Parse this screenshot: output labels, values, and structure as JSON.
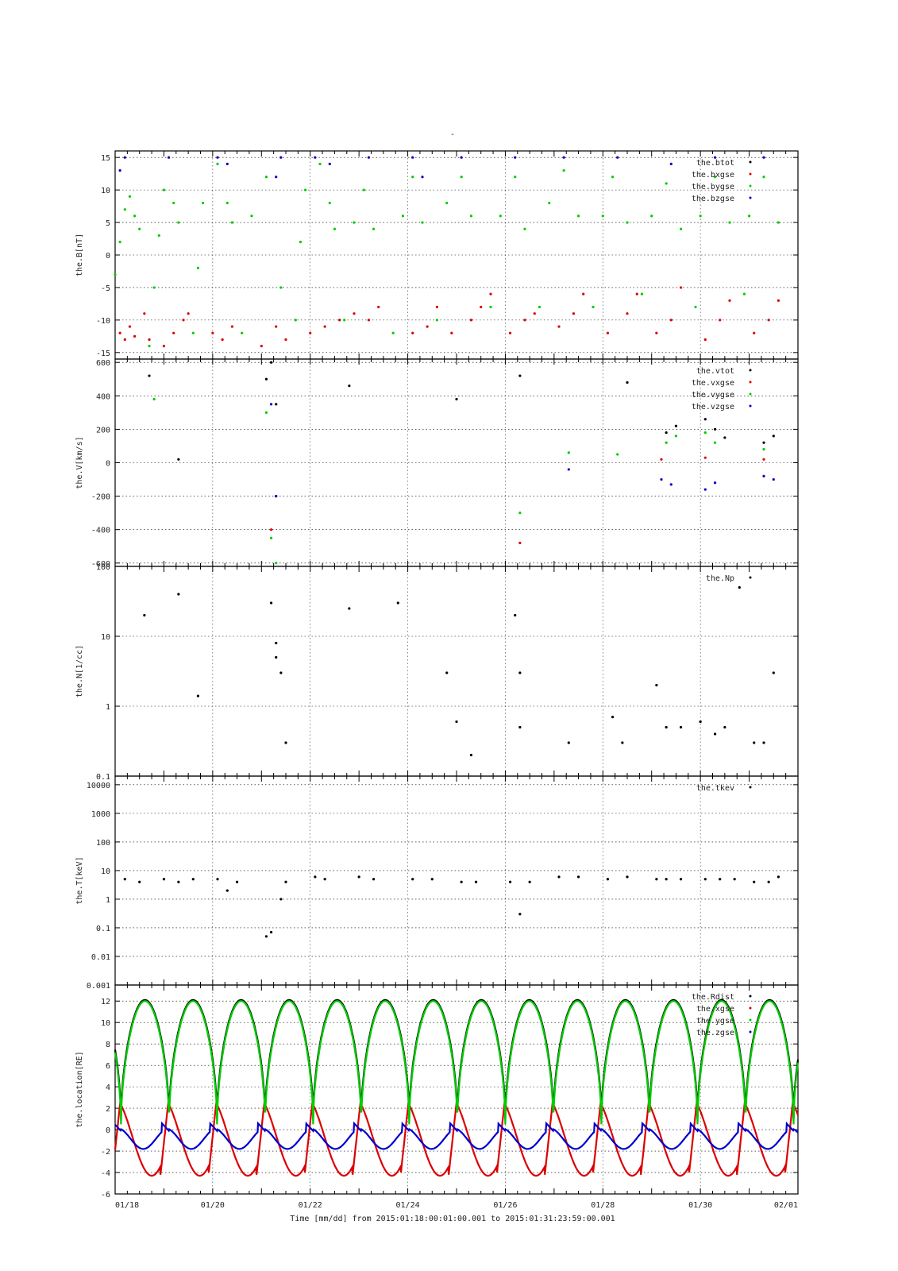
{
  "figure": {
    "title": "-",
    "xlabel": "Time [mm/dd]  from 2015:01:18:00:01:00.001  to  2015:01:31:23:59:00.001"
  },
  "colors": {
    "black": "#000000",
    "red": "#dd0000",
    "green": "#00cc00",
    "blue": "#0000cc"
  },
  "chart_data": [
    {
      "type": "scatter",
      "ylabel": "the.B[nT]",
      "ylim": [
        -16,
        16
      ],
      "yscale": "linear",
      "yticks": [
        -15,
        -10,
        -5,
        0,
        5,
        10,
        15
      ],
      "xlim": [
        18,
        32
      ],
      "xticks": [
        "01/18",
        "01/20",
        "01/22",
        "01/24",
        "01/26",
        "01/28",
        "01/30",
        "02/01"
      ],
      "grid": true,
      "legend_position": "top-right",
      "series": [
        {
          "name": "the.btot",
          "color": "#000000",
          "values": []
        },
        {
          "name": "the.bxgse",
          "color": "#dd0000",
          "values": [
            [
              18.1,
              -12
            ],
            [
              18.2,
              -13
            ],
            [
              18.3,
              -11
            ],
            [
              18.4,
              -12.5
            ],
            [
              18.6,
              -9
            ],
            [
              18.7,
              -13
            ],
            [
              19.0,
              -14
            ],
            [
              19.2,
              -12
            ],
            [
              19.4,
              -10
            ],
            [
              19.5,
              -9
            ],
            [
              20.0,
              -12
            ],
            [
              20.2,
              -13
            ],
            [
              20.4,
              -11
            ],
            [
              21.0,
              -14
            ],
            [
              21.3,
              -11
            ],
            [
              21.5,
              -13
            ],
            [
              22.0,
              -12
            ],
            [
              22.3,
              -11
            ],
            [
              22.6,
              -10
            ],
            [
              22.9,
              -9
            ],
            [
              23.2,
              -10
            ],
            [
              23.4,
              -8
            ],
            [
              24.1,
              -12
            ],
            [
              24.4,
              -11
            ],
            [
              24.6,
              -8
            ],
            [
              24.9,
              -12
            ],
            [
              25.3,
              -10
            ],
            [
              25.5,
              -8
            ],
            [
              25.7,
              -6
            ],
            [
              26.1,
              -12
            ],
            [
              26.4,
              -10
            ],
            [
              26.6,
              -9
            ],
            [
              27.1,
              -11
            ],
            [
              27.4,
              -9
            ],
            [
              27.6,
              -6
            ],
            [
              28.1,
              -12
            ],
            [
              28.5,
              -9
            ],
            [
              28.7,
              -6
            ],
            [
              29.1,
              -12
            ],
            [
              29.4,
              -10
            ],
            [
              29.6,
              -5
            ],
            [
              30.1,
              -13
            ],
            [
              30.4,
              -10
            ],
            [
              30.6,
              -7
            ],
            [
              31.1,
              -12
            ],
            [
              31.4,
              -10
            ],
            [
              31.6,
              -7
            ]
          ]
        },
        {
          "name": "the.bygse",
          "color": "#00cc00",
          "values": [
            [
              18.0,
              -3
            ],
            [
              18.1,
              2
            ],
            [
              18.2,
              7
            ],
            [
              18.3,
              9
            ],
            [
              18.4,
              6
            ],
            [
              18.5,
              4
            ],
            [
              18.7,
              -14
            ],
            [
              18.8,
              -5
            ],
            [
              18.9,
              3
            ],
            [
              19.0,
              10
            ],
            [
              19.2,
              8
            ],
            [
              19.3,
              5
            ],
            [
              19.6,
              -12
            ],
            [
              19.7,
              -2
            ],
            [
              19.8,
              8
            ],
            [
              20.1,
              14
            ],
            [
              20.3,
              8
            ],
            [
              20.4,
              5
            ],
            [
              20.6,
              -12
            ],
            [
              20.8,
              6
            ],
            [
              21.1,
              12
            ],
            [
              21.4,
              -5
            ],
            [
              21.7,
              -10
            ],
            [
              21.8,
              2
            ],
            [
              21.9,
              10
            ],
            [
              22.2,
              14
            ],
            [
              22.4,
              8
            ],
            [
              22.5,
              4
            ],
            [
              22.7,
              -10
            ],
            [
              22.9,
              5
            ],
            [
              23.1,
              10
            ],
            [
              23.3,
              4
            ],
            [
              23.7,
              -12
            ],
            [
              23.9,
              6
            ],
            [
              24.1,
              12
            ],
            [
              24.3,
              5
            ],
            [
              24.6,
              -10
            ],
            [
              24.8,
              8
            ],
            [
              25.1,
              12
            ],
            [
              25.3,
              6
            ],
            [
              25.7,
              -8
            ],
            [
              25.9,
              6
            ],
            [
              26.2,
              12
            ],
            [
              26.4,
              4
            ],
            [
              26.7,
              -8
            ],
            [
              26.9,
              8
            ],
            [
              27.2,
              13
            ],
            [
              27.5,
              6
            ],
            [
              27.8,
              -8
            ],
            [
              28.0,
              6
            ],
            [
              28.2,
              12
            ],
            [
              28.5,
              5
            ],
            [
              28.8,
              -6
            ],
            [
              29.0,
              6
            ],
            [
              29.3,
              11
            ],
            [
              29.6,
              4
            ],
            [
              29.9,
              -8
            ],
            [
              30.0,
              6
            ],
            [
              30.3,
              12
            ],
            [
              30.6,
              5
            ],
            [
              30.9,
              -6
            ],
            [
              31.0,
              6
            ],
            [
              31.3,
              12
            ],
            [
              31.6,
              5
            ]
          ]
        },
        {
          "name": "the.bzgse",
          "color": "#0000cc",
          "values": [
            [
              18.1,
              13
            ],
            [
              18.2,
              15
            ],
            [
              19.1,
              15
            ],
            [
              20.1,
              15
            ],
            [
              20.3,
              14
            ],
            [
              21.3,
              12
            ],
            [
              21.4,
              15
            ],
            [
              22.1,
              15
            ],
            [
              22.4,
              14
            ],
            [
              23.2,
              15
            ],
            [
              24.1,
              15
            ],
            [
              24.3,
              12
            ],
            [
              25.1,
              15
            ],
            [
              26.2,
              15
            ],
            [
              27.2,
              15
            ],
            [
              28.3,
              15
            ],
            [
              29.4,
              14
            ],
            [
              30.3,
              15
            ],
            [
              31.3,
              15
            ]
          ]
        }
      ]
    },
    {
      "type": "scatter",
      "ylabel": "the.V[km/s]",
      "ylim": [
        -620,
        620
      ],
      "yscale": "linear",
      "yticks": [
        -600,
        -400,
        -200,
        0,
        200,
        400,
        600
      ],
      "xlim": [
        18,
        32
      ],
      "grid": true,
      "legend_position": "top-right",
      "series": [
        {
          "name": "the.vtot",
          "color": "#000000",
          "values": [
            [
              18.7,
              520
            ],
            [
              19.3,
              20
            ],
            [
              21.1,
              500
            ],
            [
              21.2,
              600
            ],
            [
              21.3,
              350
            ],
            [
              22.8,
              460
            ],
            [
              25.0,
              380
            ],
            [
              26.3,
              520
            ],
            [
              28.5,
              480
            ],
            [
              29.3,
              180
            ],
            [
              29.5,
              220
            ],
            [
              30.1,
              260
            ],
            [
              30.3,
              200
            ],
            [
              30.5,
              150
            ],
            [
              31.3,
              120
            ],
            [
              31.5,
              160
            ]
          ]
        },
        {
          "name": "the.vxgse",
          "color": "#dd0000",
          "values": [
            [
              21.2,
              -400
            ],
            [
              21.3,
              -200
            ],
            [
              26.3,
              -480
            ],
            [
              29.2,
              20
            ],
            [
              30.1,
              30
            ],
            [
              31.3,
              20
            ]
          ]
        },
        {
          "name": "the.vygse",
          "color": "#00cc00",
          "values": [
            [
              18.8,
              380
            ],
            [
              21.1,
              300
            ],
            [
              21.2,
              -450
            ],
            [
              21.3,
              -600
            ],
            [
              26.3,
              -300
            ],
            [
              27.3,
              60
            ],
            [
              28.3,
              50
            ],
            [
              29.3,
              120
            ],
            [
              29.5,
              160
            ],
            [
              30.1,
              180
            ],
            [
              30.3,
              120
            ],
            [
              31.3,
              80
            ]
          ]
        },
        {
          "name": "the.vzgse",
          "color": "#0000cc",
          "values": [
            [
              21.2,
              350
            ],
            [
              21.3,
              -200
            ],
            [
              27.3,
              -40
            ],
            [
              29.2,
              -100
            ],
            [
              29.4,
              -130
            ],
            [
              30.1,
              -160
            ],
            [
              30.3,
              -120
            ],
            [
              31.3,
              -80
            ],
            [
              31.5,
              -100
            ]
          ]
        }
      ]
    },
    {
      "type": "scatter",
      "ylabel": "the.N[1/cc]",
      "ylim": [
        0.1,
        100
      ],
      "yscale": "log",
      "yticks": [
        0.1,
        1,
        10,
        100
      ],
      "xlim": [
        18,
        32
      ],
      "grid": true,
      "legend_position": "top-right",
      "series": [
        {
          "name": "the.Np",
          "color": "#000000",
          "values": [
            [
              18.6,
              20
            ],
            [
              19.3,
              40
            ],
            [
              19.7,
              1.4
            ],
            [
              21.2,
              30
            ],
            [
              21.3,
              8
            ],
            [
              21.3,
              5
            ],
            [
              21.4,
              3
            ],
            [
              21.5,
              0.3
            ],
            [
              22.8,
              25
            ],
            [
              23.8,
              30
            ],
            [
              24.8,
              3
            ],
            [
              25.0,
              0.6
            ],
            [
              25.3,
              0.2
            ],
            [
              26.2,
              20
            ],
            [
              26.3,
              3
            ],
            [
              26.3,
              0.5
            ],
            [
              27.3,
              0.3
            ],
            [
              28.2,
              0.7
            ],
            [
              28.4,
              0.3
            ],
            [
              29.1,
              2
            ],
            [
              29.3,
              0.5
            ],
            [
              29.6,
              0.5
            ],
            [
              30.0,
              0.6
            ],
            [
              30.3,
              0.4
            ],
            [
              30.5,
              0.5
            ],
            [
              30.8,
              50
            ],
            [
              31.1,
              0.3
            ],
            [
              31.3,
              0.3
            ],
            [
              31.5,
              3
            ]
          ]
        }
      ]
    },
    {
      "type": "scatter",
      "ylabel": "the.T[keV]",
      "ylim": [
        0.001,
        20000
      ],
      "yscale": "log",
      "yticks": [
        0.001,
        0.01,
        0.1,
        1,
        10,
        100,
        1000,
        10000
      ],
      "xlim": [
        18,
        32
      ],
      "grid": true,
      "legend_position": "top-right",
      "series": [
        {
          "name": "the.tkev",
          "color": "#000000",
          "values": [
            [
              18.2,
              5
            ],
            [
              18.5,
              4
            ],
            [
              19.0,
              5
            ],
            [
              19.3,
              4
            ],
            [
              19.6,
              5
            ],
            [
              20.1,
              5
            ],
            [
              20.3,
              2
            ],
            [
              20.5,
              4
            ],
            [
              21.1,
              0.05
            ],
            [
              21.2,
              0.07
            ],
            [
              21.4,
              1
            ],
            [
              21.5,
              4
            ],
            [
              22.1,
              6
            ],
            [
              22.3,
              5
            ],
            [
              23.0,
              6
            ],
            [
              23.3,
              5
            ],
            [
              24.1,
              5
            ],
            [
              24.5,
              5
            ],
            [
              25.1,
              4
            ],
            [
              25.4,
              4
            ],
            [
              26.1,
              4
            ],
            [
              26.3,
              0.3
            ],
            [
              26.5,
              4
            ],
            [
              27.1,
              6
            ],
            [
              27.5,
              6
            ],
            [
              28.1,
              5
            ],
            [
              28.5,
              6
            ],
            [
              29.1,
              5
            ],
            [
              29.3,
              5
            ],
            [
              29.6,
              5
            ],
            [
              30.1,
              5
            ],
            [
              30.4,
              5
            ],
            [
              30.7,
              5
            ],
            [
              31.1,
              4
            ],
            [
              31.4,
              4
            ],
            [
              31.6,
              6
            ]
          ]
        }
      ]
    },
    {
      "type": "line",
      "ylabel": "the.location[RE]",
      "ylim": [
        -6,
        13.5
      ],
      "yscale": "linear",
      "yticks": [
        -6,
        -4,
        -2,
        0,
        2,
        4,
        6,
        8,
        10,
        12
      ],
      "xlim": [
        18,
        32
      ],
      "period_days": 0.985,
      "grid": true,
      "legend_position": "top-right",
      "series": [
        {
          "name": "the.Rdist",
          "color": "#000000",
          "min": 1.0,
          "max": 12.1
        },
        {
          "name": "the.xgse",
          "color": "#dd0000",
          "min": -4.3,
          "max": 3.2
        },
        {
          "name": "the.ygse",
          "color": "#00cc00",
          "min": 0.5,
          "max": 12.0
        },
        {
          "name": "the.zgse",
          "color": "#0000cc",
          "min": -1.8,
          "max": 0.6
        }
      ]
    }
  ]
}
